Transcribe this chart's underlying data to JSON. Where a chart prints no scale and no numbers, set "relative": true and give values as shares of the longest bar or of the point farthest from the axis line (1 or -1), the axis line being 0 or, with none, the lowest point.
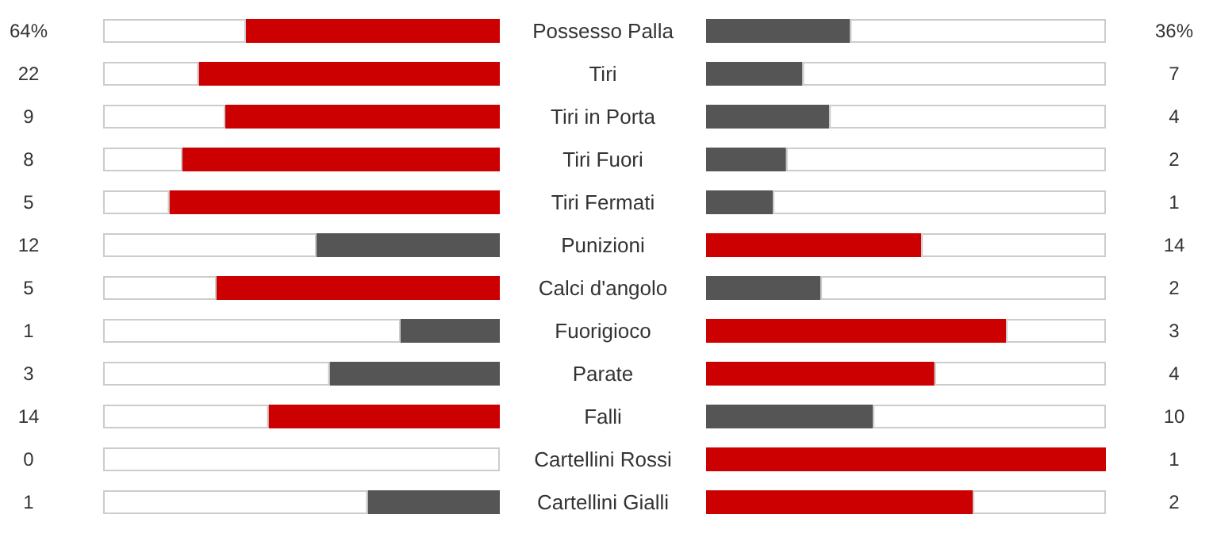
{
  "chart_data": [
    {
      "type": "bar",
      "orientation": "horizontal",
      "relative": true,
      "stacked": true,
      "categories": [
        "Possesso Palla",
        "Tiri",
        "Tiri in Porta",
        "Tiri Fuori",
        "Tiri Fermati",
        "Punizioni",
        "Calci d'angolo",
        "Fuorigioco",
        "Parate",
        "Falli",
        "Cartellini Rossi",
        "Cartellini Gialli"
      ],
      "series": [
        {
          "values": [
            0.64,
            0.759,
            0.692,
            0.8,
            0.833,
            0.462,
            0.714,
            0.25,
            0.429,
            0.583,
            0,
            0.333
          ],
          "colors": [
            "#cc0000",
            "#cc0000",
            "#cc0000",
            "#cc0000",
            "#cc0000",
            "#555555",
            "#cc0000",
            "#555555",
            "#555555",
            "#cc0000",
            "#555555",
            "#555555"
          ]
        },
        {
          "values": [
            0.36,
            0.241,
            0.308,
            0.2,
            0.167,
            0.538,
            0.286,
            0.75,
            0.571,
            0.417,
            1,
            0.667
          ],
          "color": "#ffffff"
        }
      ],
      "annotations": [
        "64%",
        "22",
        "9",
        "8",
        "5",
        "12",
        "5",
        "1",
        "3",
        "14",
        "0",
        "1"
      ]
    },
    {
      "type": "bar",
      "orientation": "horizontal",
      "relative": true,
      "stacked": true,
      "categories": [
        null,
        null,
        null,
        null,
        null,
        null,
        null,
        null,
        null,
        null,
        null,
        null
      ],
      "series": [
        {
          "values": [
            0.36,
            0.241,
            0.308,
            0.2,
            0.167,
            0.538,
            0.286,
            0.75,
            0.571,
            0.417,
            1,
            0.667
          ],
          "colors": [
            "#555555",
            "#555555",
            "#555555",
            "#555555",
            "#555555",
            "#cc0000",
            "#555555",
            "#cc0000",
            "#cc0000",
            "#555555",
            "#cc0000",
            "#cc0000"
          ]
        },
        {
          "values": [
            0.64,
            0.759,
            0.692,
            0.8,
            0.833,
            0.462,
            0.714,
            0.25,
            0.429,
            0.583,
            0,
            0.333
          ],
          "color": "#ffffff"
        }
      ],
      "annotations": [
        "36%",
        "7",
        "4",
        "2",
        "1",
        "14",
        "2",
        "3",
        "4",
        "10",
        "1",
        "2"
      ]
    }
  ]
}
